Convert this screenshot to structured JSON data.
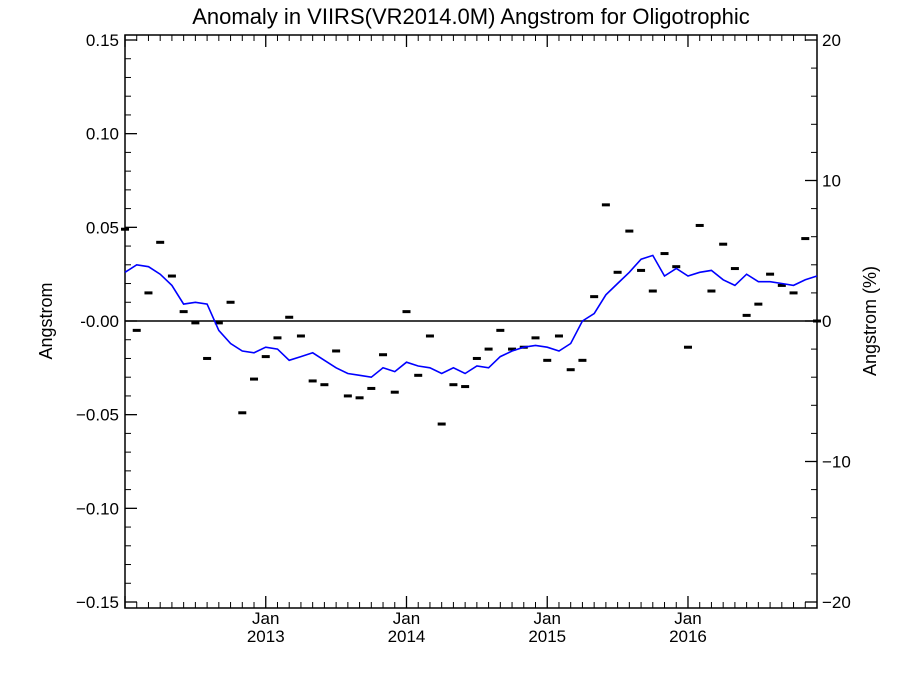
{
  "chart_data": {
    "type": "line",
    "title": "Anomaly in VIIRS(VR2014.0M) Angstrom for Oligotrophic",
    "ylabel": "Angstrom",
    "y2label": "Angstrom (%)",
    "xlim": [
      "2012-01",
      "2016-12"
    ],
    "ylim": [
      -0.15,
      0.15
    ],
    "y2lim": [
      -20,
      20
    ],
    "x_ticks": [
      {
        "date": "2013-01",
        "label": [
          "Jan",
          "2013"
        ]
      },
      {
        "date": "2014-01",
        "label": [
          "Jan",
          "2014"
        ]
      },
      {
        "date": "2015-01",
        "label": [
          "Jan",
          "2015"
        ]
      },
      {
        "date": "2016-01",
        "label": [
          "Jan",
          "2016"
        ]
      }
    ],
    "y_ticks": [
      "0.15",
      "0.10",
      "0.05",
      "-0.00",
      "−0.05",
      "−0.10",
      "−0.15"
    ],
    "y_tick_values": [
      0.15,
      0.1,
      0.05,
      0.0,
      -0.05,
      -0.1,
      -0.15
    ],
    "y2_ticks": [
      "20",
      "10",
      "0",
      "−10",
      "−20"
    ],
    "y2_tick_values": [
      20,
      10,
      0,
      -10,
      -20
    ],
    "zero_line": true,
    "grid": false,
    "series": [
      {
        "type": "line",
        "color": "#0000ff",
        "x": [
          "2012-01",
          "2012-02",
          "2012-03",
          "2012-04",
          "2012-05",
          "2012-06",
          "2012-07",
          "2012-08",
          "2012-09",
          "2012-10",
          "2012-11",
          "2012-12",
          "2013-01",
          "2013-02",
          "2013-03",
          "2013-04",
          "2013-05",
          "2013-06",
          "2013-07",
          "2013-08",
          "2013-09",
          "2013-10",
          "2013-11",
          "2013-12",
          "2014-01",
          "2014-02",
          "2014-03",
          "2014-04",
          "2014-05",
          "2014-06",
          "2014-07",
          "2014-08",
          "2014-09",
          "2014-10",
          "2014-11",
          "2014-12",
          "2015-01",
          "2015-02",
          "2015-03",
          "2015-04",
          "2015-05",
          "2015-06",
          "2015-07",
          "2015-08",
          "2015-09",
          "2015-10",
          "2015-11",
          "2015-12",
          "2016-01",
          "2016-02",
          "2016-03",
          "2016-04",
          "2016-05",
          "2016-06",
          "2016-07",
          "2016-08",
          "2016-09",
          "2016-10",
          "2016-11",
          "2016-12"
        ],
        "y": [
          0.026,
          0.03,
          0.029,
          0.025,
          0.019,
          0.009,
          0.01,
          0.009,
          -0.005,
          -0.012,
          -0.016,
          -0.017,
          -0.014,
          -0.015,
          -0.021,
          -0.019,
          -0.017,
          -0.021,
          -0.025,
          -0.028,
          -0.029,
          -0.03,
          -0.025,
          -0.027,
          -0.022,
          -0.024,
          -0.025,
          -0.028,
          -0.025,
          -0.028,
          -0.024,
          -0.025,
          -0.019,
          -0.016,
          -0.014,
          -0.013,
          -0.014,
          -0.016,
          -0.012,
          0.0,
          0.004,
          0.014,
          0.02,
          0.026,
          0.033,
          0.035,
          0.024,
          0.028,
          0.024,
          0.026,
          0.027,
          0.022,
          0.019,
          0.025,
          0.021,
          0.021,
          0.02,
          0.019,
          0.022,
          0.024
        ]
      },
      {
        "type": "scatter",
        "marker": "dash",
        "color": "#000000",
        "x": [
          "2012-01",
          "2012-02",
          "2012-03",
          "2012-04",
          "2012-05",
          "2012-06",
          "2012-07",
          "2012-08",
          "2012-09",
          "2012-10",
          "2012-11",
          "2012-12",
          "2013-01",
          "2013-02",
          "2013-03",
          "2013-04",
          "2013-05",
          "2013-06",
          "2013-07",
          "2013-08",
          "2013-09",
          "2013-10",
          "2013-11",
          "2013-12",
          "2014-01",
          "2014-02",
          "2014-03",
          "2014-04",
          "2014-05",
          "2014-06",
          "2014-07",
          "2014-08",
          "2014-09",
          "2014-10",
          "2014-11",
          "2014-12",
          "2015-01",
          "2015-02",
          "2015-03",
          "2015-04",
          "2015-05",
          "2015-06",
          "2015-07",
          "2015-08",
          "2015-09",
          "2015-10",
          "2015-11",
          "2015-12",
          "2016-01",
          "2016-02",
          "2016-03",
          "2016-04",
          "2016-05",
          "2016-06",
          "2016-07",
          "2016-08",
          "2016-09",
          "2016-10",
          "2016-11",
          "2016-12"
        ],
        "y": [
          0.049,
          -0.005,
          0.015,
          0.042,
          0.024,
          0.005,
          -0.001,
          -0.02,
          -0.001,
          0.01,
          -0.049,
          -0.031,
          -0.019,
          -0.009,
          0.002,
          -0.008,
          -0.032,
          -0.034,
          -0.016,
          -0.04,
          -0.041,
          -0.036,
          -0.018,
          -0.038,
          0.005,
          -0.029,
          -0.008,
          -0.055,
          -0.034,
          -0.035,
          -0.02,
          -0.015,
          -0.005,
          -0.015,
          -0.014,
          -0.009,
          -0.021,
          -0.008,
          -0.026,
          -0.021,
          0.013,
          0.062,
          0.026,
          0.048,
          0.027,
          0.016,
          0.036,
          0.029,
          -0.014,
          0.051,
          0.016,
          0.041,
          0.028,
          0.003,
          0.009,
          0.025,
          0.019,
          0.015,
          0.044,
          0.0
        ]
      }
    ]
  }
}
